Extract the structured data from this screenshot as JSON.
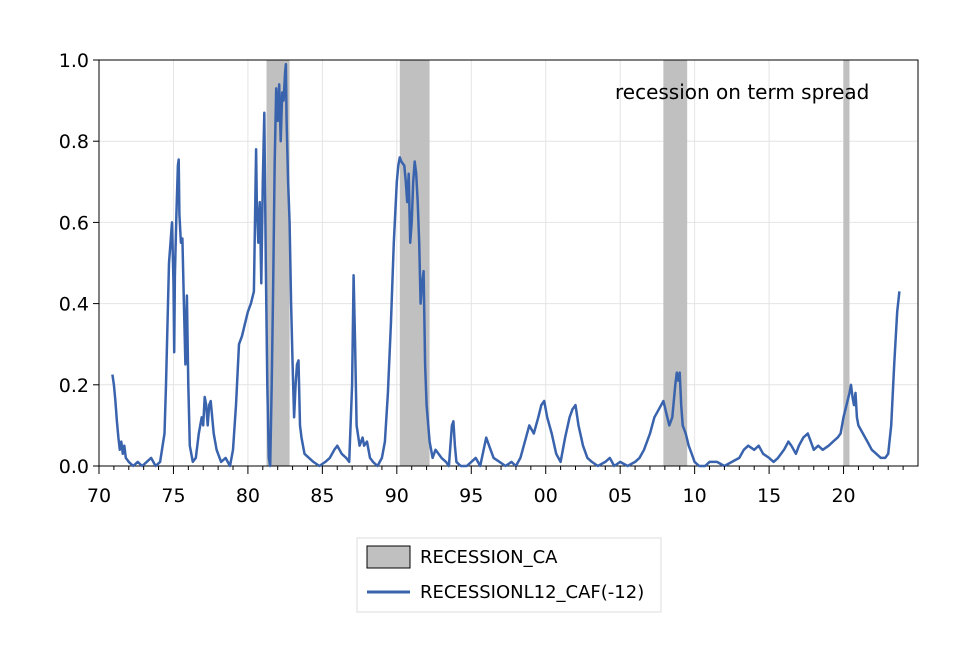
{
  "chart_data": {
    "type": "line",
    "title": "",
    "xlabel": "",
    "ylabel": "",
    "annotation": "recession on term spread",
    "xlim": [
      1970,
      2025
    ],
    "ylim": [
      0,
      1.0
    ],
    "x_ticks": [
      {
        "value": 1970,
        "label": "70"
      },
      {
        "value": 1975,
        "label": "75"
      },
      {
        "value": 1980,
        "label": "80"
      },
      {
        "value": 1985,
        "label": "85"
      },
      {
        "value": 1990,
        "label": "90"
      },
      {
        "value": 1995,
        "label": "95"
      },
      {
        "value": 2000,
        "label": "00"
      },
      {
        "value": 2005,
        "label": "05"
      },
      {
        "value": 2010,
        "label": "10"
      },
      {
        "value": 2015,
        "label": "15"
      },
      {
        "value": 2020,
        "label": "20"
      }
    ],
    "y_ticks": [
      {
        "value": 0.0,
        "label": "0.0"
      },
      {
        "value": 0.2,
        "label": "0.2"
      },
      {
        "value": 0.4,
        "label": "0.4"
      },
      {
        "value": 0.6,
        "label": "0.6"
      },
      {
        "value": 0.8,
        "label": "0.8"
      },
      {
        "value": 1.0,
        "label": "1.0"
      }
    ],
    "grid": true,
    "legend_position": "bottom-center",
    "recession_bands": {
      "name": "RECESSION_CA",
      "color": "#c0c0c0",
      "periods": [
        [
          1981.25,
          1982.8
        ],
        [
          1990.2,
          1992.2
        ],
        [
          2007.9,
          2009.5
        ],
        [
          2020.0,
          2020.4
        ]
      ]
    },
    "series": [
      {
        "name": "RECESSIONL12_CAF(-12)",
        "color": "#3a63ad",
        "points": [
          [
            1970.9,
            0.225
          ],
          [
            1971.0,
            0.2
          ],
          [
            1971.1,
            0.16
          ],
          [
            1971.2,
            0.11
          ],
          [
            1971.3,
            0.07
          ],
          [
            1971.4,
            0.04
          ],
          [
            1971.5,
            0.06
          ],
          [
            1971.6,
            0.03
          ],
          [
            1971.7,
            0.05
          ],
          [
            1971.8,
            0.02
          ],
          [
            1972.0,
            0.01
          ],
          [
            1972.3,
            0.0
          ],
          [
            1972.6,
            0.01
          ],
          [
            1972.9,
            0.0
          ],
          [
            1973.2,
            0.01
          ],
          [
            1973.5,
            0.02
          ],
          [
            1973.8,
            0.0
          ],
          [
            1974.1,
            0.01
          ],
          [
            1974.4,
            0.08
          ],
          [
            1974.5,
            0.2
          ],
          [
            1974.6,
            0.35
          ],
          [
            1974.7,
            0.5
          ],
          [
            1974.8,
            0.55
          ],
          [
            1974.9,
            0.6
          ],
          [
            1975.0,
            0.45
          ],
          [
            1975.05,
            0.28
          ],
          [
            1975.1,
            0.47
          ],
          [
            1975.2,
            0.62
          ],
          [
            1975.3,
            0.74
          ],
          [
            1975.35,
            0.755
          ],
          [
            1975.4,
            0.62
          ],
          [
            1975.5,
            0.55
          ],
          [
            1975.6,
            0.56
          ],
          [
            1975.7,
            0.4
          ],
          [
            1975.8,
            0.25
          ],
          [
            1975.9,
            0.42
          ],
          [
            1976.0,
            0.2
          ],
          [
            1976.1,
            0.05
          ],
          [
            1976.3,
            0.01
          ],
          [
            1976.5,
            0.02
          ],
          [
            1976.7,
            0.08
          ],
          [
            1976.9,
            0.12
          ],
          [
            1977.0,
            0.1
          ],
          [
            1977.1,
            0.17
          ],
          [
            1977.2,
            0.15
          ],
          [
            1977.3,
            0.1
          ],
          [
            1977.4,
            0.15
          ],
          [
            1977.5,
            0.16
          ],
          [
            1977.6,
            0.12
          ],
          [
            1977.7,
            0.08
          ],
          [
            1977.9,
            0.04
          ],
          [
            1978.2,
            0.01
          ],
          [
            1978.5,
            0.02
          ],
          [
            1978.8,
            0.0
          ],
          [
            1979.0,
            0.04
          ],
          [
            1979.2,
            0.15
          ],
          [
            1979.4,
            0.3
          ],
          [
            1979.6,
            0.32
          ],
          [
            1979.8,
            0.35
          ],
          [
            1980.0,
            0.38
          ],
          [
            1980.2,
            0.4
          ],
          [
            1980.4,
            0.43
          ],
          [
            1980.55,
            0.78
          ],
          [
            1980.6,
            0.65
          ],
          [
            1980.7,
            0.55
          ],
          [
            1980.8,
            0.65
          ],
          [
            1980.9,
            0.45
          ],
          [
            1981.0,
            0.7
          ],
          [
            1981.1,
            0.87
          ],
          [
            1981.2,
            0.5
          ],
          [
            1981.3,
            0.2
          ],
          [
            1981.4,
            0.02
          ],
          [
            1981.5,
            0.0
          ],
          [
            1981.6,
            0.2
          ],
          [
            1981.7,
            0.45
          ],
          [
            1981.8,
            0.75
          ],
          [
            1981.9,
            0.93
          ],
          [
            1982.0,
            0.85
          ],
          [
            1982.1,
            0.94
          ],
          [
            1982.2,
            0.8
          ],
          [
            1982.3,
            0.92
          ],
          [
            1982.4,
            0.9
          ],
          [
            1982.5,
            0.97
          ],
          [
            1982.55,
            0.99
          ],
          [
            1982.6,
            0.85
          ],
          [
            1982.7,
            0.7
          ],
          [
            1982.8,
            0.6
          ],
          [
            1982.9,
            0.4
          ],
          [
            1983.0,
            0.25
          ],
          [
            1983.1,
            0.12
          ],
          [
            1983.2,
            0.2
          ],
          [
            1983.3,
            0.25
          ],
          [
            1983.4,
            0.26
          ],
          [
            1983.5,
            0.1
          ],
          [
            1983.6,
            0.07
          ],
          [
            1983.8,
            0.03
          ],
          [
            1984.1,
            0.02
          ],
          [
            1984.4,
            0.01
          ],
          [
            1984.8,
            0.0
          ],
          [
            1985.2,
            0.01
          ],
          [
            1985.5,
            0.02
          ],
          [
            1985.8,
            0.04
          ],
          [
            1986.0,
            0.05
          ],
          [
            1986.3,
            0.03
          ],
          [
            1986.6,
            0.02
          ],
          [
            1986.8,
            0.01
          ],
          [
            1987.0,
            0.2
          ],
          [
            1987.1,
            0.47
          ],
          [
            1987.2,
            0.3
          ],
          [
            1987.3,
            0.1
          ],
          [
            1987.5,
            0.05
          ],
          [
            1987.7,
            0.07
          ],
          [
            1987.8,
            0.05
          ],
          [
            1988.0,
            0.06
          ],
          [
            1988.2,
            0.02
          ],
          [
            1988.4,
            0.01
          ],
          [
            1988.7,
            0.0
          ],
          [
            1989.0,
            0.02
          ],
          [
            1989.2,
            0.06
          ],
          [
            1989.4,
            0.18
          ],
          [
            1989.6,
            0.35
          ],
          [
            1989.8,
            0.55
          ],
          [
            1990.0,
            0.7
          ],
          [
            1990.1,
            0.74
          ],
          [
            1990.2,
            0.76
          ],
          [
            1990.3,
            0.75
          ],
          [
            1990.5,
            0.74
          ],
          [
            1990.6,
            0.7
          ],
          [
            1990.7,
            0.65
          ],
          [
            1990.8,
            0.72
          ],
          [
            1990.9,
            0.55
          ],
          [
            1991.0,
            0.6
          ],
          [
            1991.1,
            0.7
          ],
          [
            1991.2,
            0.75
          ],
          [
            1991.3,
            0.72
          ],
          [
            1991.4,
            0.65
          ],
          [
            1991.5,
            0.55
          ],
          [
            1991.6,
            0.4
          ],
          [
            1991.7,
            0.45
          ],
          [
            1991.8,
            0.48
          ],
          [
            1991.9,
            0.25
          ],
          [
            1992.0,
            0.15
          ],
          [
            1992.2,
            0.06
          ],
          [
            1992.4,
            0.02
          ],
          [
            1992.6,
            0.04
          ],
          [
            1992.8,
            0.03
          ],
          [
            1993.0,
            0.02
          ],
          [
            1993.3,
            0.01
          ],
          [
            1993.5,
            0.0
          ],
          [
            1993.7,
            0.1
          ],
          [
            1993.8,
            0.11
          ],
          [
            1993.9,
            0.05
          ],
          [
            1994.0,
            0.01
          ],
          [
            1994.3,
            0.0
          ],
          [
            1994.7,
            0.0
          ],
          [
            1995.0,
            0.01
          ],
          [
            1995.3,
            0.02
          ],
          [
            1995.6,
            0.0
          ],
          [
            1996.0,
            0.07
          ],
          [
            1996.2,
            0.05
          ],
          [
            1996.5,
            0.02
          ],
          [
            1996.9,
            0.01
          ],
          [
            1997.3,
            0.0
          ],
          [
            1997.7,
            0.01
          ],
          [
            1998.0,
            0.0
          ],
          [
            1998.3,
            0.02
          ],
          [
            1998.6,
            0.06
          ],
          [
            1998.9,
            0.1
          ],
          [
            1999.2,
            0.08
          ],
          [
            1999.5,
            0.12
          ],
          [
            1999.7,
            0.15
          ],
          [
            1999.9,
            0.16
          ],
          [
            2000.1,
            0.12
          ],
          [
            2000.4,
            0.08
          ],
          [
            2000.7,
            0.03
          ],
          [
            2001.0,
            0.01
          ],
          [
            2001.3,
            0.07
          ],
          [
            2001.6,
            0.12
          ],
          [
            2001.8,
            0.14
          ],
          [
            2002.0,
            0.15
          ],
          [
            2002.2,
            0.1
          ],
          [
            2002.5,
            0.05
          ],
          [
            2002.8,
            0.02
          ],
          [
            2003.1,
            0.01
          ],
          [
            2003.5,
            0.0
          ],
          [
            2004.0,
            0.01
          ],
          [
            2004.3,
            0.02
          ],
          [
            2004.6,
            0.0
          ],
          [
            2005.0,
            0.01
          ],
          [
            2005.5,
            0.0
          ],
          [
            2006.0,
            0.01
          ],
          [
            2006.3,
            0.02
          ],
          [
            2006.6,
            0.04
          ],
          [
            2007.0,
            0.08
          ],
          [
            2007.3,
            0.12
          ],
          [
            2007.6,
            0.14
          ],
          [
            2007.9,
            0.16
          ],
          [
            2008.1,
            0.13
          ],
          [
            2008.3,
            0.1
          ],
          [
            2008.5,
            0.12
          ],
          [
            2008.7,
            0.2
          ],
          [
            2008.8,
            0.23
          ],
          [
            2008.9,
            0.21
          ],
          [
            2009.0,
            0.23
          ],
          [
            2009.1,
            0.15
          ],
          [
            2009.2,
            0.1
          ],
          [
            2009.4,
            0.08
          ],
          [
            2009.6,
            0.05
          ],
          [
            2009.8,
            0.03
          ],
          [
            2010.0,
            0.01
          ],
          [
            2010.3,
            0.0
          ],
          [
            2010.7,
            0.0
          ],
          [
            2011.0,
            0.01
          ],
          [
            2011.5,
            0.01
          ],
          [
            2012.0,
            0.0
          ],
          [
            2012.5,
            0.01
          ],
          [
            2013.0,
            0.02
          ],
          [
            2013.3,
            0.04
          ],
          [
            2013.6,
            0.05
          ],
          [
            2014.0,
            0.04
          ],
          [
            2014.3,
            0.05
          ],
          [
            2014.6,
            0.03
          ],
          [
            2015.0,
            0.02
          ],
          [
            2015.3,
            0.01
          ],
          [
            2015.6,
            0.02
          ],
          [
            2016.0,
            0.04
          ],
          [
            2016.3,
            0.06
          ],
          [
            2016.5,
            0.05
          ],
          [
            2016.8,
            0.03
          ],
          [
            2017.0,
            0.05
          ],
          [
            2017.3,
            0.07
          ],
          [
            2017.6,
            0.08
          ],
          [
            2017.8,
            0.06
          ],
          [
            2018.0,
            0.04
          ],
          [
            2018.3,
            0.05
          ],
          [
            2018.6,
            0.04
          ],
          [
            2019.0,
            0.05
          ],
          [
            2019.3,
            0.06
          ],
          [
            2019.6,
            0.07
          ],
          [
            2019.8,
            0.08
          ],
          [
            2020.0,
            0.12
          ],
          [
            2020.2,
            0.15
          ],
          [
            2020.4,
            0.18
          ],
          [
            2020.5,
            0.2
          ],
          [
            2020.6,
            0.17
          ],
          [
            2020.7,
            0.15
          ],
          [
            2020.8,
            0.18
          ],
          [
            2020.9,
            0.12
          ],
          [
            2021.0,
            0.1
          ],
          [
            2021.3,
            0.08
          ],
          [
            2021.6,
            0.06
          ],
          [
            2021.9,
            0.04
          ],
          [
            2022.2,
            0.03
          ],
          [
            2022.5,
            0.02
          ],
          [
            2022.8,
            0.02
          ],
          [
            2023.0,
            0.03
          ],
          [
            2023.2,
            0.1
          ],
          [
            2023.4,
            0.25
          ],
          [
            2023.6,
            0.38
          ],
          [
            2023.75,
            0.43
          ]
        ]
      }
    ]
  }
}
